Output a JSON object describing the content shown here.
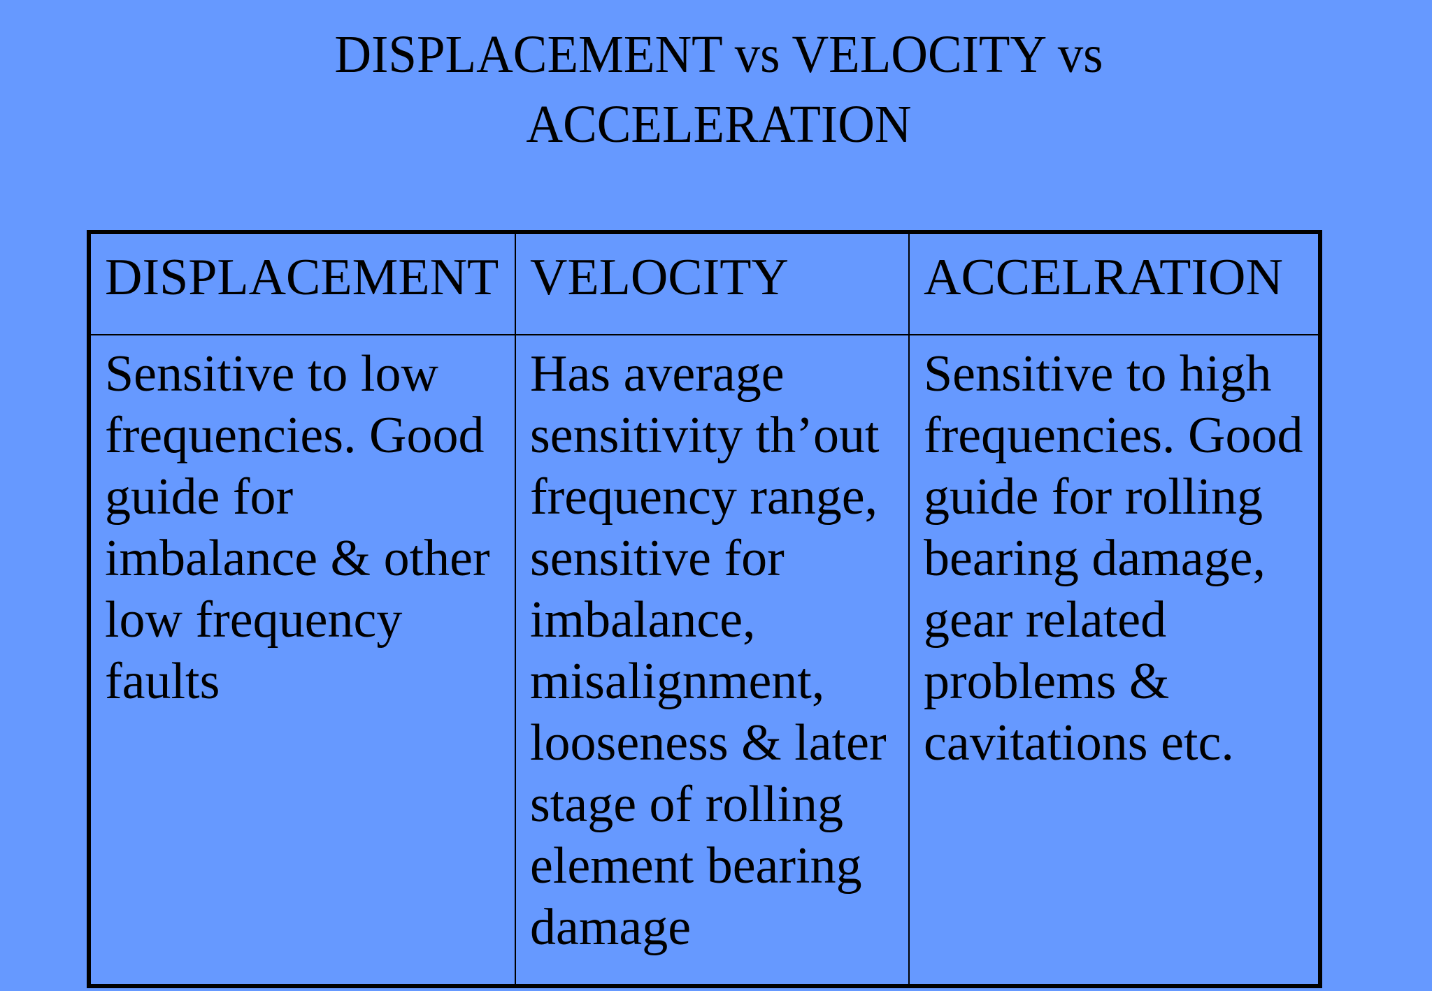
{
  "slide": {
    "background_color": "#6699ff",
    "title_lines": [
      "DISPLACEMENT vs VELOCITY vs",
      "ACCELERATION"
    ]
  },
  "table": {
    "headers": [
      "DISPLACEMENT",
      "VELOCITY",
      "ACCELRATION"
    ],
    "rows": [
      [
        "Sensitive to low frequencies. Good guide for imbalance & other low frequency faults",
        "Has average sensitivity th’out frequency range, sensitive for imbalance, misalignment, looseness & later stage of rolling element bearing damage",
        "Sensitive to high frequencies. Good guide for rolling bearing damage, gear related problems & cavitations etc."
      ]
    ]
  }
}
